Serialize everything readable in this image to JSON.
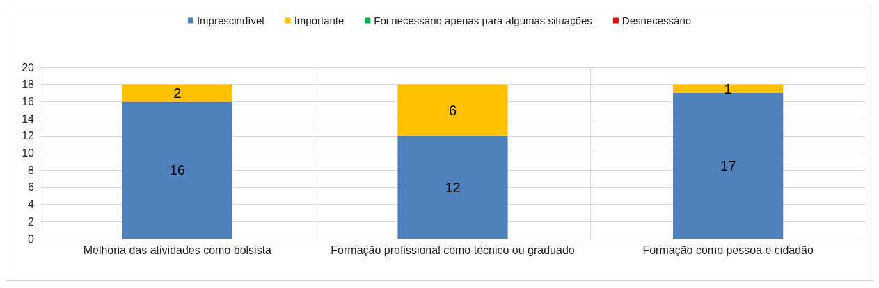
{
  "chart_data": {
    "type": "bar",
    "stacked": true,
    "categories": [
      "Melhoria das atividades como bolsista",
      "Formação profissional como técnico ou graduado",
      "Formação como pessoa e cidadão"
    ],
    "series": [
      {
        "name": "Imprescindível",
        "color": "#4f81bd",
        "values": [
          16,
          12,
          17
        ],
        "value_labels": [
          "16",
          "12",
          "17"
        ]
      },
      {
        "name": "Importante",
        "color": "#ffc000",
        "values": [
          2,
          6,
          1
        ],
        "value_labels": [
          "2",
          "6",
          "1"
        ]
      },
      {
        "name": "Foi necessário apenas para algumas situações",
        "color": "#00b050",
        "values": [
          0,
          0,
          0
        ],
        "value_labels": [
          null,
          null,
          null
        ]
      },
      {
        "name": "Desnecessário",
        "color": "#ff0000",
        "values": [
          0,
          0,
          0
        ],
        "value_labels": [
          null,
          null,
          null
        ]
      }
    ],
    "ylim": [
      0,
      20
    ],
    "yticks": [
      0,
      2,
      4,
      6,
      8,
      10,
      12,
      14,
      16,
      18,
      20
    ],
    "grid": true,
    "legend": "top"
  }
}
